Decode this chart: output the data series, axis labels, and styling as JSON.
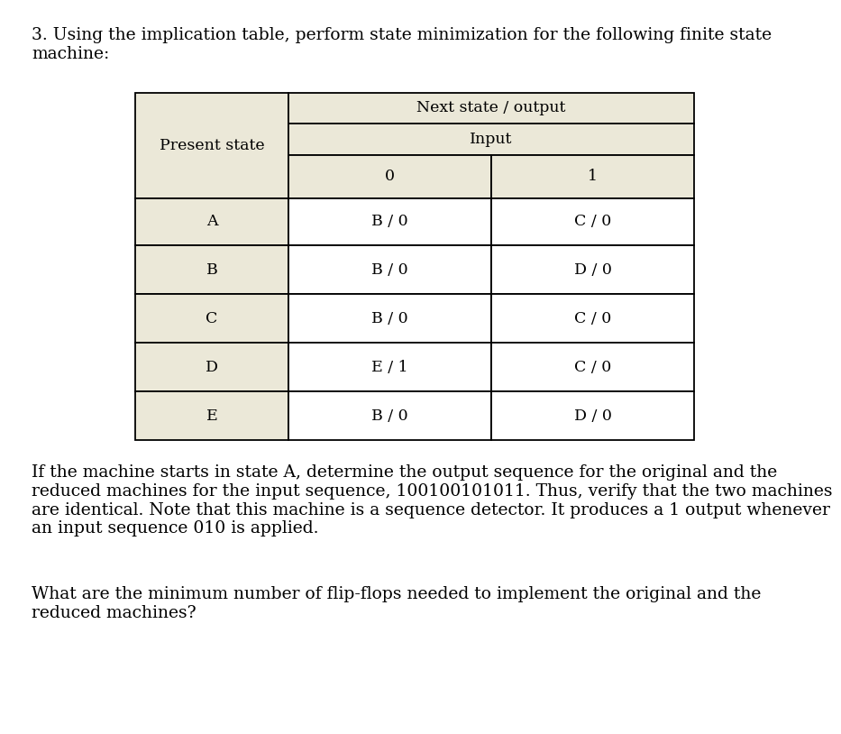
{
  "title_text": "3. Using the implication table, perform state minimization for the following finite state\nmachine:",
  "header_row1_col1": "Present state",
  "header_row1_col2": "Next state / output",
  "header_row2_col2": "Input",
  "header_row3_col2": "0",
  "header_row3_col3": "1",
  "states": [
    "A",
    "B",
    "C",
    "D",
    "E"
  ],
  "col0_values": [
    "B / 0",
    "B / 0",
    "B / 0",
    "E / 1",
    "B / 0"
  ],
  "col1_values": [
    "C / 0",
    "D / 0",
    "C / 0",
    "C / 0",
    "D / 0"
  ],
  "footer_text1": "If the machine starts in state A, determine the output sequence for the original and the\nreduced machines for the input sequence, 100100101011. Thus, verify that the two machines\nare identical. Note that this machine is a sequence detector. It produces a 1 output whenever\nan input sequence 010 is applied.",
  "footer_text2": "What are the minimum number of flip-flops needed to implement the original and the\nreduced machines?",
  "bg_color": "#ffffff",
  "header_bg": "#ebe8d8",
  "cell_bg": "#ffffff",
  "border_color": "#000000",
  "text_color": "#000000",
  "font_size_title": 13.5,
  "font_size_header": 12.5,
  "font_size_cell": 12.5,
  "font_size_footer": 13.5
}
